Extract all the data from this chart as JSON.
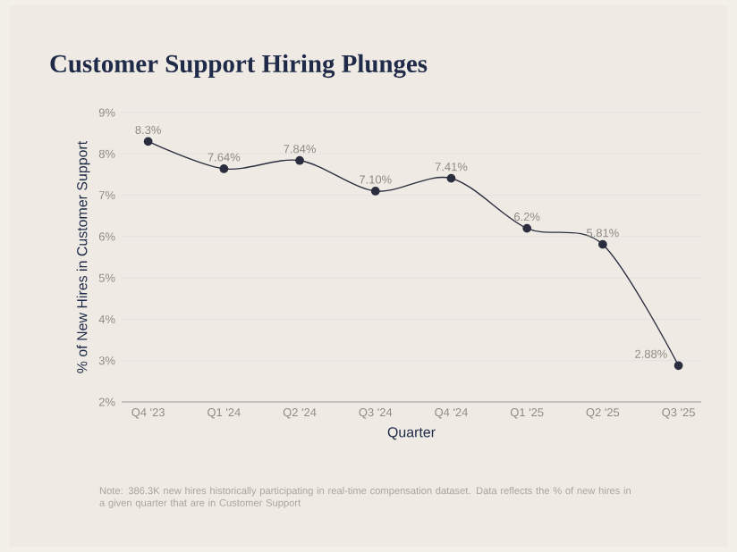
{
  "chart_data": {
    "type": "line",
    "title": "Customer Support Hiring Plunges",
    "xlabel": "Quarter",
    "ylabel": "% of New Hires in Customer Support",
    "categories": [
      "Q4 '23",
      "Q1 '24",
      "Q2 '24",
      "Q3 '24",
      "Q4 '24",
      "Q1 '25",
      "Q2 '25",
      "Q3 '25"
    ],
    "values": [
      8.3,
      7.64,
      7.84,
      7.1,
      7.41,
      6.2,
      5.81,
      2.88
    ],
    "value_labels": [
      "8.3%",
      "7.64%",
      "7.84%",
      "7.10%",
      "7.41%",
      "6.2%",
      "5.81%",
      "2.88%"
    ],
    "color": "#2a2d3e",
    "marker": "circle",
    "line_style": "solid",
    "grid": "y",
    "ylim": [
      2,
      9
    ],
    "yticks": [
      {
        "value": 2,
        "label": "2%"
      },
      {
        "value": 3,
        "label": "3%"
      },
      {
        "value": 4,
        "label": "4%"
      },
      {
        "value": 5,
        "label": "5%"
      },
      {
        "value": 6,
        "label": "6%"
      },
      {
        "value": 7,
        "label": "7%"
      },
      {
        "value": 8,
        "label": "8%"
      },
      {
        "value": 9,
        "label": "9%"
      }
    ],
    "annotations": [
      "Note: 386.3K new hires historically participating in real-time compensation dataset. Data reflects the % of new hires in a given quarter that are in Customer Support"
    ]
  }
}
